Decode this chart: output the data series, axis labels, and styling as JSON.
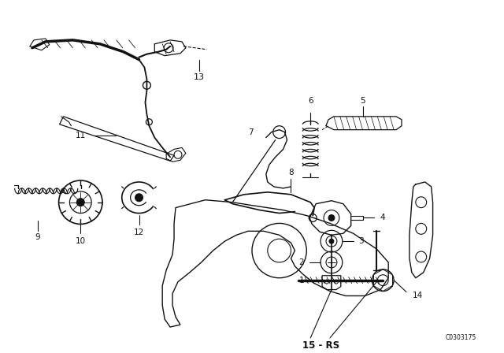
{
  "bg_color": "#ffffff",
  "line_color": "#111111",
  "fig_width": 6.4,
  "fig_height": 4.48,
  "dpi": 100,
  "watermark": "C0303175"
}
